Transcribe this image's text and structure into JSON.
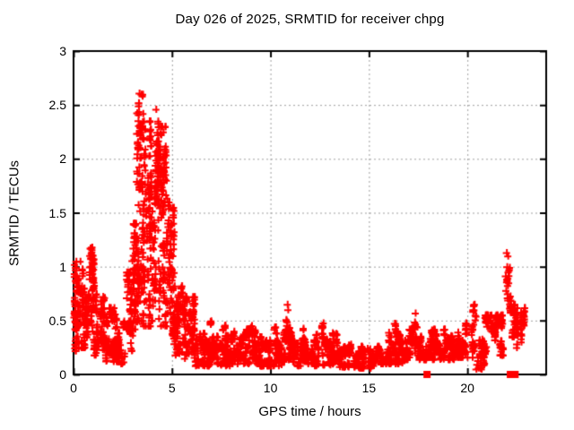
{
  "chart_data": {
    "type": "scatter",
    "title": "Day 026 of 2025, SRMTID for receiver chpg",
    "xlabel": "GPS time / hours",
    "ylabel": "SRMTID / TECUs",
    "xlim": [
      0,
      24
    ],
    "ylim": [
      0,
      3
    ],
    "xticks": [
      {
        "value": 0,
        "label": "0"
      },
      {
        "value": 5,
        "label": "5"
      },
      {
        "value": 10,
        "label": "10"
      },
      {
        "value": 15,
        "label": "15"
      },
      {
        "value": 20,
        "label": "20"
      }
    ],
    "yticks": [
      {
        "value": 0,
        "label": "0"
      },
      {
        "value": 0.5,
        "label": "0.5"
      },
      {
        "value": 1,
        "label": "1"
      },
      {
        "value": 1.5,
        "label": "1.5"
      },
      {
        "value": 2,
        "label": "2"
      },
      {
        "value": 2.5,
        "label": "2.5"
      },
      {
        "value": 3,
        "label": "3"
      }
    ],
    "grid": true,
    "legend": "none",
    "marker": {
      "shape": "plus",
      "color": "#ff0000",
      "size": 8
    },
    "zero_marker": {
      "shape": "filled-square",
      "color": "#ff0000",
      "size": 8
    },
    "colors": {
      "grid": "#9e9e9e",
      "axis": "#000000",
      "background": "#ffffff"
    },
    "seed": 20250126,
    "series": [
      {
        "name": "SRMTID chpg",
        "representation": "density-bands",
        "bands_format": [
          "x_start_h",
          "x_end_h",
          "n_points",
          "y_min_tecu",
          "y_max_tecu",
          "skew"
        ],
        "bands": [
          [
            0.0,
            0.12,
            25,
            0.28,
            1.05,
            1.2
          ],
          [
            0.1,
            0.45,
            45,
            0.22,
            0.85,
            1.3
          ],
          [
            0.15,
            0.45,
            10,
            0.78,
            1.08,
            1.0
          ],
          [
            0.4,
            0.78,
            70,
            0.25,
            0.8,
            1.3
          ],
          [
            0.75,
            1.05,
            65,
            0.35,
            1.18,
            1.1
          ],
          [
            1.03,
            1.55,
            70,
            0.18,
            0.78,
            1.3
          ],
          [
            1.5,
            2.2,
            110,
            0.12,
            0.62,
            1.4
          ],
          [
            2.15,
            2.75,
            70,
            0.1,
            0.45,
            1.3
          ],
          [
            2.3,
            2.7,
            8,
            0.42,
            0.65,
            1.0
          ],
          [
            2.72,
            3.05,
            55,
            0.22,
            0.95,
            1.1
          ],
          [
            2.95,
            3.25,
            70,
            0.35,
            1.4,
            1.0
          ],
          [
            3.22,
            3.55,
            95,
            0.5,
            2.6,
            0.95
          ],
          [
            3.52,
            3.9,
            95,
            0.45,
            2.35,
            0.95
          ],
          [
            3.88,
            4.35,
            115,
            0.5,
            2.48,
            0.9
          ],
          [
            4.33,
            4.75,
            105,
            0.45,
            2.3,
            0.95
          ],
          [
            4.73,
            5.1,
            85,
            0.3,
            1.6,
            1.05
          ],
          [
            5.05,
            5.6,
            95,
            0.18,
            0.82,
            1.25
          ],
          [
            5.58,
            6.15,
            85,
            0.12,
            0.72,
            1.3
          ],
          [
            6.1,
            7.0,
            110,
            0.08,
            0.38,
            1.25
          ],
          [
            6.85,
            7.0,
            6,
            0.35,
            0.5,
            1.0
          ],
          [
            7.0,
            8.0,
            130,
            0.08,
            0.36,
            1.25
          ],
          [
            7.55,
            7.7,
            6,
            0.32,
            0.48,
            1.0
          ],
          [
            8.0,
            8.6,
            80,
            0.1,
            0.4,
            1.25
          ],
          [
            8.6,
            9.4,
            100,
            0.1,
            0.42,
            1.25
          ],
          [
            8.95,
            9.1,
            8,
            0.38,
            0.56,
            1.0
          ],
          [
            9.4,
            10.6,
            140,
            0.08,
            0.35,
            1.25
          ],
          [
            10.2,
            10.35,
            6,
            0.3,
            0.44,
            1.0
          ],
          [
            10.6,
            11.3,
            90,
            0.12,
            0.42,
            1.25
          ],
          [
            10.78,
            10.95,
            12,
            0.4,
            0.65,
            1.0
          ],
          [
            11.3,
            12.3,
            120,
            0.08,
            0.34,
            1.25
          ],
          [
            11.6,
            11.75,
            6,
            0.28,
            0.44,
            1.0
          ],
          [
            12.3,
            13.4,
            130,
            0.09,
            0.38,
            1.25
          ],
          [
            12.55,
            12.7,
            7,
            0.33,
            0.5,
            1.0
          ],
          [
            13.05,
            13.2,
            6,
            0.3,
            0.44,
            1.0
          ],
          [
            13.4,
            14.4,
            120,
            0.07,
            0.28,
            1.25
          ],
          [
            14.4,
            15.6,
            130,
            0.06,
            0.26,
            1.25
          ],
          [
            15.6,
            16.8,
            140,
            0.1,
            0.4,
            1.25
          ],
          [
            16.25,
            16.4,
            6,
            0.34,
            0.52,
            1.0
          ],
          [
            16.8,
            18.0,
            140,
            0.14,
            0.42,
            1.25
          ],
          [
            17.25,
            17.45,
            8,
            0.38,
            0.56,
            1.0
          ],
          [
            18.0,
            19.3,
            150,
            0.14,
            0.42,
            1.25
          ],
          [
            19.3,
            20.3,
            130,
            0.16,
            0.48,
            1.25
          ],
          [
            20.25,
            20.45,
            10,
            0.42,
            0.66,
            1.0
          ],
          [
            20.45,
            20.85,
            45,
            0.05,
            0.35,
            1.1
          ],
          [
            20.85,
            21.85,
            115,
            0.18,
            0.55,
            1.2
          ],
          [
            21.9,
            22.2,
            25,
            0.5,
            1.1,
            0.85
          ],
          [
            22.2,
            22.55,
            45,
            0.35,
            0.72,
            1.05
          ],
          [
            22.45,
            22.9,
            45,
            0.25,
            0.62,
            1.1
          ]
        ],
        "peak_points": [
          [
            0.05,
            1.02
          ],
          [
            0.1,
            0.97
          ],
          [
            0.33,
            1.05
          ],
          [
            0.88,
            1.17
          ],
          [
            0.93,
            1.08
          ],
          [
            3.33,
            2.61
          ],
          [
            3.3,
            2.52
          ],
          [
            3.52,
            2.42
          ],
          [
            3.62,
            2.28
          ],
          [
            4.18,
            2.46
          ],
          [
            4.28,
            2.35
          ],
          [
            4.55,
            2.25
          ],
          [
            10.85,
            0.65
          ],
          [
            10.88,
            0.6
          ],
          [
            17.35,
            0.57
          ],
          [
            20.35,
            0.65
          ],
          [
            20.55,
            0.06
          ],
          [
            20.68,
            0.08
          ],
          [
            21.98,
            1.13
          ],
          [
            22.05,
            1.1
          ],
          [
            22.0,
            1.0
          ],
          [
            22.02,
            0.87
          ],
          [
            21.95,
            0.78
          ]
        ],
        "zero_points": [
          [
            17.95,
            0
          ],
          [
            22.18,
            0
          ],
          [
            22.42,
            0
          ]
        ]
      }
    ]
  }
}
